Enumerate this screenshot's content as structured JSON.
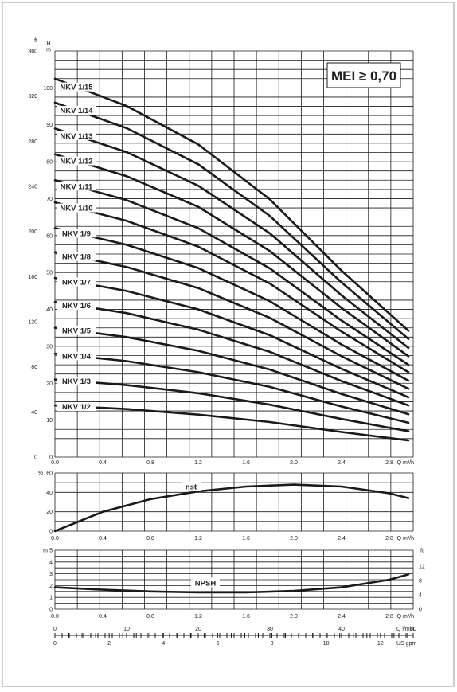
{
  "badge": {
    "text": "MEI ≥ 0,70"
  },
  "chart_data": [
    {
      "type": "line",
      "title": "",
      "xlabel": "Q m³/h",
      "ylabel_left_outer": "ft",
      "ylabel_left_inner": "H m",
      "xlim": [
        0,
        3
      ],
      "ylim": [
        0,
        110
      ],
      "ylim_ft": [
        0,
        360
      ],
      "x_ticks": [
        "0.0",
        "0.4",
        "0.8",
        "1.2",
        "1.6",
        "2.0",
        "2.4",
        "2.8"
      ],
      "y_ticks_m": [
        "0",
        "10",
        "20",
        "30",
        "40",
        "50",
        "60",
        "70",
        "80",
        "90",
        "100"
      ],
      "y_ticks_ft": [
        "0",
        "40",
        "80",
        "120",
        "160",
        "200",
        "240",
        "280",
        "320",
        "360"
      ],
      "series": [
        {
          "name": "NKV 1/2",
          "x": [
            0.0,
            0.6,
            1.2,
            1.8,
            2.4,
            2.96
          ],
          "y": [
            14.0,
            13.0,
            11.5,
            9.5,
            6.8,
            4.5
          ]
        },
        {
          "name": "NKV 1/3",
          "x": [
            0.0,
            0.6,
            1.2,
            1.8,
            2.4,
            2.96
          ],
          "y": [
            21.0,
            19.5,
            17.3,
            14.2,
            10.3,
            7.0
          ]
        },
        {
          "name": "NKV 1/4",
          "x": [
            0.0,
            0.6,
            1.2,
            1.8,
            2.4,
            2.96
          ],
          "y": [
            28.0,
            26.0,
            23.0,
            19.0,
            13.7,
            9.3
          ]
        },
        {
          "name": "NKV 1/5",
          "x": [
            0.0,
            0.6,
            1.2,
            1.8,
            2.4,
            2.96
          ],
          "y": [
            35.0,
            32.5,
            28.8,
            23.7,
            17.1,
            11.6
          ]
        },
        {
          "name": "NKV 1/6",
          "x": [
            0.0,
            0.6,
            1.2,
            1.8,
            2.4,
            2.96
          ],
          "y": [
            42.0,
            39.0,
            34.5,
            28.5,
            20.6,
            14.0
          ]
        },
        {
          "name": "NKV 1/7",
          "x": [
            0.0,
            0.6,
            1.2,
            1.8,
            2.4,
            2.96
          ],
          "y": [
            48.5,
            45.0,
            40.0,
            33.0,
            23.9,
            16.2
          ]
        },
        {
          "name": "NKV 1/8",
          "x": [
            0.0,
            0.6,
            1.2,
            1.8,
            2.4,
            2.96
          ],
          "y": [
            55.5,
            51.5,
            45.8,
            37.7,
            27.3,
            18.5
          ]
        },
        {
          "name": "NKV 1/9",
          "x": [
            0.0,
            0.6,
            1.2,
            1.8,
            2.4,
            2.96
          ],
          "y": [
            62.0,
            57.5,
            51.2,
            42.2,
            30.5,
            20.7
          ]
        },
        {
          "name": "NKV 1/10",
          "x": [
            0.0,
            0.6,
            1.2,
            1.8,
            2.4,
            2.96
          ],
          "y": [
            69.0,
            64.0,
            57.0,
            47.0,
            34.0,
            23.0
          ]
        },
        {
          "name": "NKV 1/11",
          "x": [
            0.0,
            0.6,
            1.2,
            1.8,
            2.4,
            2.96
          ],
          "y": [
            75.0,
            69.6,
            62.0,
            51.1,
            37.0,
            25.0
          ]
        },
        {
          "name": "NKV 1/12",
          "x": [
            0.0,
            0.6,
            1.2,
            1.8,
            2.4,
            2.96
          ],
          "y": [
            82.0,
            76.1,
            67.8,
            55.8,
            40.4,
            27.3
          ]
        },
        {
          "name": "NKV 1/13",
          "x": [
            0.0,
            0.6,
            1.2,
            1.8,
            2.4,
            2.96
          ],
          "y": [
            89.0,
            82.6,
            73.5,
            60.6,
            43.8,
            29.6
          ]
        },
        {
          "name": "NKV 1/14",
          "x": [
            0.0,
            0.6,
            1.2,
            1.8,
            2.4,
            2.96
          ],
          "y": [
            96.0,
            89.1,
            79.3,
            65.3,
            47.3,
            32.0
          ]
        },
        {
          "name": "NKV 1/15",
          "x": [
            0.0,
            0.6,
            1.2,
            1.8,
            2.4,
            2.96
          ],
          "y": [
            102.5,
            95.1,
            84.7,
            69.8,
            50.5,
            34.2
          ]
        }
      ]
    },
    {
      "type": "line",
      "title": "",
      "xlabel": "Q m³/h",
      "ylabel": "%",
      "xlim": [
        0,
        3
      ],
      "ylim": [
        0,
        60
      ],
      "x_ticks": [
        "0.0",
        "0.4",
        "0.8",
        "1.2",
        "1.6",
        "2.0",
        "2.4",
        "2.8"
      ],
      "y_ticks": [
        "0",
        "20",
        "40",
        "60"
      ],
      "series": [
        {
          "name": "ηst",
          "x": [
            0.0,
            0.4,
            0.8,
            1.2,
            1.6,
            2.0,
            2.4,
            2.8,
            2.96
          ],
          "y": [
            0,
            20,
            33,
            41,
            46,
            48,
            46,
            39,
            34
          ]
        }
      ]
    },
    {
      "type": "line",
      "title": "",
      "xlabel": "Q m³/h",
      "ylabel_left": "m",
      "ylabel_right": "ft",
      "xlim": [
        0,
        3
      ],
      "ylim": [
        0,
        5
      ],
      "ylim_ft": [
        0,
        16.4
      ],
      "x_ticks": [
        "0.0",
        "0.4",
        "0.8",
        "1.2",
        "1.6",
        "2.0",
        "2.4",
        "2.8"
      ],
      "y_ticks_m": [
        "0",
        "1",
        "2",
        "3",
        "4",
        "5"
      ],
      "y_ticks_ft": [
        "0",
        "4",
        "8",
        "12"
      ],
      "series": [
        {
          "name": "NPSH",
          "x": [
            0.0,
            0.4,
            0.8,
            1.2,
            1.6,
            2.0,
            2.4,
            2.8,
            2.96
          ],
          "y": [
            1.85,
            1.65,
            1.5,
            1.42,
            1.42,
            1.55,
            1.85,
            2.5,
            2.95
          ]
        }
      ]
    },
    {
      "type": "table",
      "title": "",
      "secondary_axes": [
        {
          "label": "Q l/min",
          "ticks": [
            "0",
            "10",
            "20",
            "30",
            "40",
            "50"
          ],
          "max": 50
        },
        {
          "label": "US gpm",
          "ticks": [
            "0",
            "2",
            "4",
            "6",
            "8",
            "10",
            "12"
          ],
          "max": 13.2
        }
      ]
    }
  ]
}
